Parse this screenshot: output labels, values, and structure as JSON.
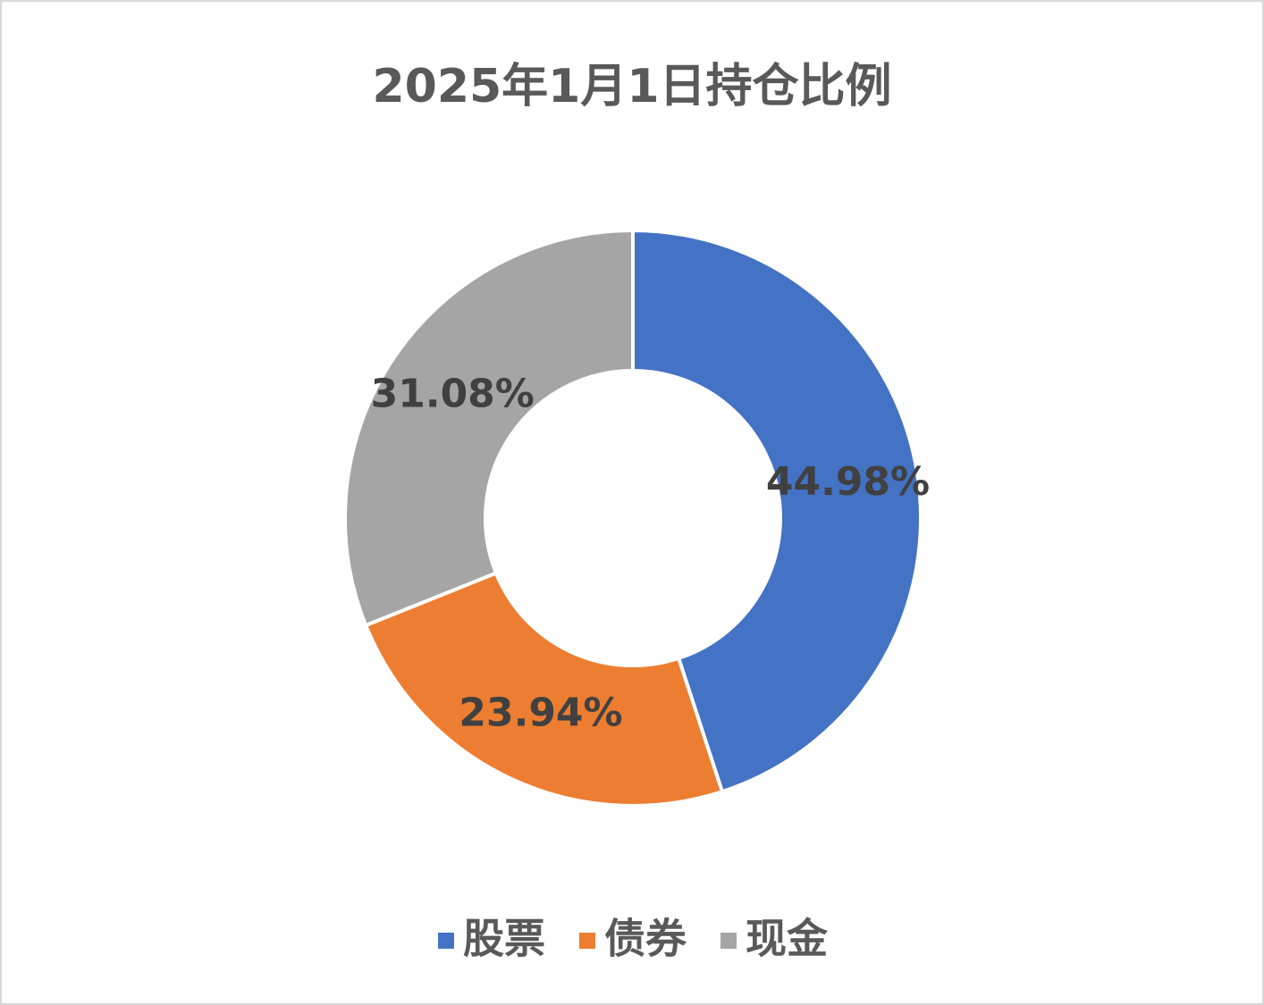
{
  "chart_data": {
    "type": "donut",
    "title": "2025年1月1日持仓比例",
    "categories": [
      "股票",
      "债券",
      "现金"
    ],
    "values": [
      44.98,
      23.94,
      31.08
    ],
    "value_labels": [
      "44.98%",
      "23.94%",
      "31.08%"
    ],
    "colors": [
      "#4472c4",
      "#ed7d31",
      "#a5a5a5"
    ],
    "legend": "bottom"
  }
}
